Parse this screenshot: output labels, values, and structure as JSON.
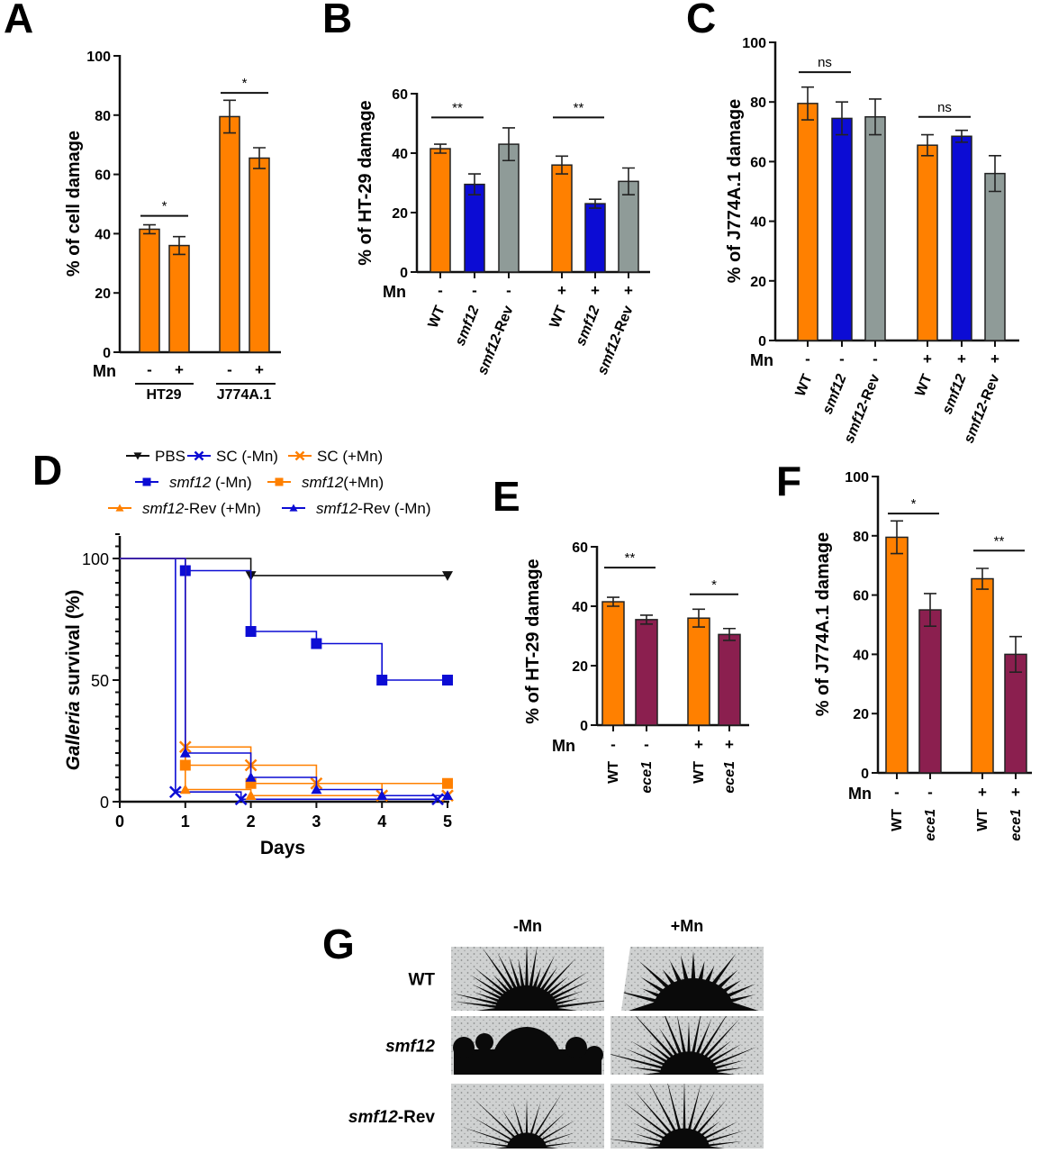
{
  "panel_letters": [
    "A",
    "B",
    "C",
    "D",
    "E",
    "F",
    "G"
  ],
  "colors": {
    "orange": "#ff8000",
    "blue": "#0c0cd4",
    "gray": "#8f9b98",
    "maroon": "#8b1f4f",
    "black": "#111111"
  },
  "chart_data": [
    {
      "panel": "A",
      "type": "bar",
      "ylabel": "% of cell damage",
      "ylim": [
        0,
        100
      ],
      "yticks": [
        0,
        20,
        40,
        60,
        80,
        100
      ],
      "mn_label": "Mn",
      "bars": [
        {
          "mn": "-",
          "value": 41.5,
          "err": 1.5,
          "color": "#ff8000"
        },
        {
          "mn": "+",
          "value": 36,
          "err": 3,
          "color": "#ff8000"
        },
        {
          "mn": "-",
          "value": 79.5,
          "err": 5.5,
          "color": "#ff8000"
        },
        {
          "mn": "+",
          "value": 65.5,
          "err": 3.5,
          "color": "#ff8000"
        }
      ],
      "groups": [
        "HT29",
        "J774A.1"
      ],
      "significance": [
        {
          "bars": [
            0,
            1
          ],
          "label": "*"
        },
        {
          "bars": [
            2,
            3
          ],
          "label": "*"
        }
      ]
    },
    {
      "panel": "B",
      "type": "bar",
      "ylabel": "% of HT-29 damage",
      "ylim": [
        0,
        60
      ],
      "yticks": [
        0,
        20,
        40,
        60
      ],
      "mn_label": "Mn",
      "bars": [
        {
          "mn": "-",
          "name_italic": "",
          "name": "WT",
          "value": 41.5,
          "err": 1.5,
          "color": "#ff8000"
        },
        {
          "mn": "-",
          "name_italic": "smf12",
          "name": "",
          "value": 29.5,
          "err": 3.5,
          "color": "#0c0cd4"
        },
        {
          "mn": "-",
          "name_italic": "smf12",
          "name": "-Rev",
          "value": 43,
          "err": 5.5,
          "color": "#8f9b98"
        },
        {
          "mn": "+",
          "name_italic": "",
          "name": "WT",
          "value": 36,
          "err": 3,
          "color": "#ff8000"
        },
        {
          "mn": "+",
          "name_italic": "smf12",
          "name": "",
          "value": 23,
          "err": 1.5,
          "color": "#0c0cd4"
        },
        {
          "mn": "+",
          "name_italic": "smf12",
          "name": "-Rev",
          "value": 30.5,
          "err": 4.5,
          "color": "#8f9b98"
        }
      ],
      "significance": [
        {
          "bars": [
            0,
            1
          ],
          "label": "**"
        },
        {
          "bars": [
            3,
            4
          ],
          "label": "**"
        }
      ]
    },
    {
      "panel": "C",
      "type": "bar",
      "ylabel": "% of J774A.1 damage",
      "ylim": [
        0,
        100
      ],
      "yticks": [
        0,
        20,
        40,
        60,
        80,
        100
      ],
      "mn_label": "Mn",
      "bars": [
        {
          "mn": "-",
          "name_italic": "",
          "name": "WT",
          "value": 79.5,
          "err": 5.5,
          "color": "#ff8000"
        },
        {
          "mn": "-",
          "name_italic": "smf12",
          "name": "",
          "value": 74.5,
          "err": 5.5,
          "color": "#0c0cd4"
        },
        {
          "mn": "-",
          "name_italic": "smf12",
          "name": "-Rev",
          "value": 75,
          "err": 6,
          "color": "#8f9b98"
        },
        {
          "mn": "+",
          "name_italic": "",
          "name": "WT",
          "value": 65.5,
          "err": 3.5,
          "color": "#ff8000"
        },
        {
          "mn": "+",
          "name_italic": "smf12",
          "name": "",
          "value": 68.5,
          "err": 2,
          "color": "#0c0cd4"
        },
        {
          "mn": "+",
          "name_italic": "smf12",
          "name": "-Rev",
          "value": 56,
          "err": 6,
          "color": "#8f9b98"
        }
      ],
      "significance": [
        {
          "bars": [
            0,
            1
          ],
          "label": "ns"
        },
        {
          "bars": [
            3,
            4
          ],
          "label": "ns"
        }
      ]
    },
    {
      "panel": "D",
      "type": "line",
      "ylabel_italic": "Galleria",
      "ylabel": " survival (%)",
      "xlabel": "Days",
      "xlim": [
        0,
        5
      ],
      "ylim": [
        0,
        100
      ],
      "xticks": [
        0,
        1,
        2,
        3,
        4,
        5
      ],
      "yticks": [
        0,
        50,
        100
      ],
      "legend_position": "top",
      "series": [
        {
          "italic": "",
          "name": "PBS",
          "color": "#111111",
          "marker": "triangle-down",
          "x": [
            0,
            1,
            2,
            3,
            4,
            5
          ],
          "y": [
            100,
            100,
            93,
            93,
            93,
            93
          ]
        },
        {
          "italic": "",
          "name": "SC (-Mn)",
          "color": "#0c0cd4",
          "marker": "x",
          "x": [
            0,
            0.85,
            1.85,
            4.85
          ],
          "y": [
            100,
            4,
            1,
            1
          ]
        },
        {
          "italic": "",
          "name": "SC (+Mn)",
          "color": "#ff8000",
          "marker": "x",
          "x": [
            0,
            1,
            2,
            3,
            4,
            5
          ],
          "y": [
            100,
            22.5,
            15,
            7.5,
            2.5,
            2.5
          ]
        },
        {
          "italic": "smf12",
          "name": " (-Mn)",
          "color": "#0c0cd4",
          "marker": "square",
          "x": [
            0,
            1,
            2,
            3,
            4,
            5
          ],
          "y": [
            100,
            95,
            70,
            65,
            50,
            50
          ]
        },
        {
          "italic": "smf12",
          "name": "(+Mn)",
          "color": "#ff8000",
          "marker": "square",
          "x": [
            0,
            1,
            2,
            3,
            4,
            5
          ],
          "y": [
            100,
            15,
            7.5,
            7.5,
            7.5,
            7.5
          ]
        },
        {
          "italic": "smf12",
          "name": "-Rev (+Mn)",
          "color": "#ff8000",
          "marker": "triangle",
          "x": [
            0,
            1,
            2,
            3,
            4,
            5
          ],
          "y": [
            100,
            5,
            2.5,
            2.5,
            2.5,
            2.5
          ]
        },
        {
          "italic": "smf12",
          "name": "-Rev (-Mn)",
          "color": "#0c0cd4",
          "marker": "triangle",
          "x": [
            0,
            1,
            2,
            3,
            4,
            5
          ],
          "y": [
            100,
            20,
            10,
            5,
            2.5,
            2.5
          ]
        }
      ]
    },
    {
      "panel": "E",
      "type": "bar",
      "ylabel": "% of HT-29 damage",
      "ylim": [
        0,
        60
      ],
      "yticks": [
        0,
        20,
        40,
        60
      ],
      "mn_label": "Mn",
      "bars": [
        {
          "mn": "-",
          "name_italic": "",
          "name": "WT",
          "value": 41.5,
          "err": 1.5,
          "color": "#ff8000"
        },
        {
          "mn": "-",
          "name_italic": "ece1",
          "name": "",
          "value": 35.5,
          "err": 1.5,
          "color": "#8b1f4f"
        },
        {
          "mn": "+",
          "name_italic": "",
          "name": "WT",
          "value": 36,
          "err": 3,
          "color": "#ff8000"
        },
        {
          "mn": "+",
          "name_italic": "ece1",
          "name": "",
          "value": 30.5,
          "err": 2,
          "color": "#8b1f4f"
        }
      ],
      "significance": [
        {
          "bars": [
            0,
            1
          ],
          "label": "**"
        },
        {
          "bars": [
            2,
            3
          ],
          "label": "*"
        }
      ]
    },
    {
      "panel": "F",
      "type": "bar",
      "ylabel": "% of J774A.1 damage",
      "ylim": [
        0,
        100
      ],
      "yticks": [
        0,
        20,
        40,
        60,
        80,
        100
      ],
      "mn_label": "Mn",
      "bars": [
        {
          "mn": "-",
          "name_italic": "",
          "name": "WT",
          "value": 79.5,
          "err": 5.5,
          "color": "#ff8000"
        },
        {
          "mn": "-",
          "name_italic": "ece1",
          "name": "",
          "value": 55,
          "err": 5.5,
          "color": "#8b1f4f"
        },
        {
          "mn": "+",
          "name_italic": "",
          "name": "WT",
          "value": 65.5,
          "err": 3.5,
          "color": "#ff8000"
        },
        {
          "mn": "+",
          "name_italic": "ece1",
          "name": "",
          "value": 40,
          "err": 6,
          "color": "#8b1f4f"
        }
      ],
      "significance": [
        {
          "bars": [
            0,
            1
          ],
          "label": "*"
        },
        {
          "bars": [
            2,
            3
          ],
          "label": "**"
        }
      ]
    }
  ],
  "panel_g": {
    "columns": [
      "-Mn",
      "+Mn"
    ],
    "rows": [
      {
        "italic": "",
        "label": "WT"
      },
      {
        "italic": "smf12",
        "label": ""
      },
      {
        "italic": "smf12",
        "label": "-Rev"
      }
    ]
  }
}
